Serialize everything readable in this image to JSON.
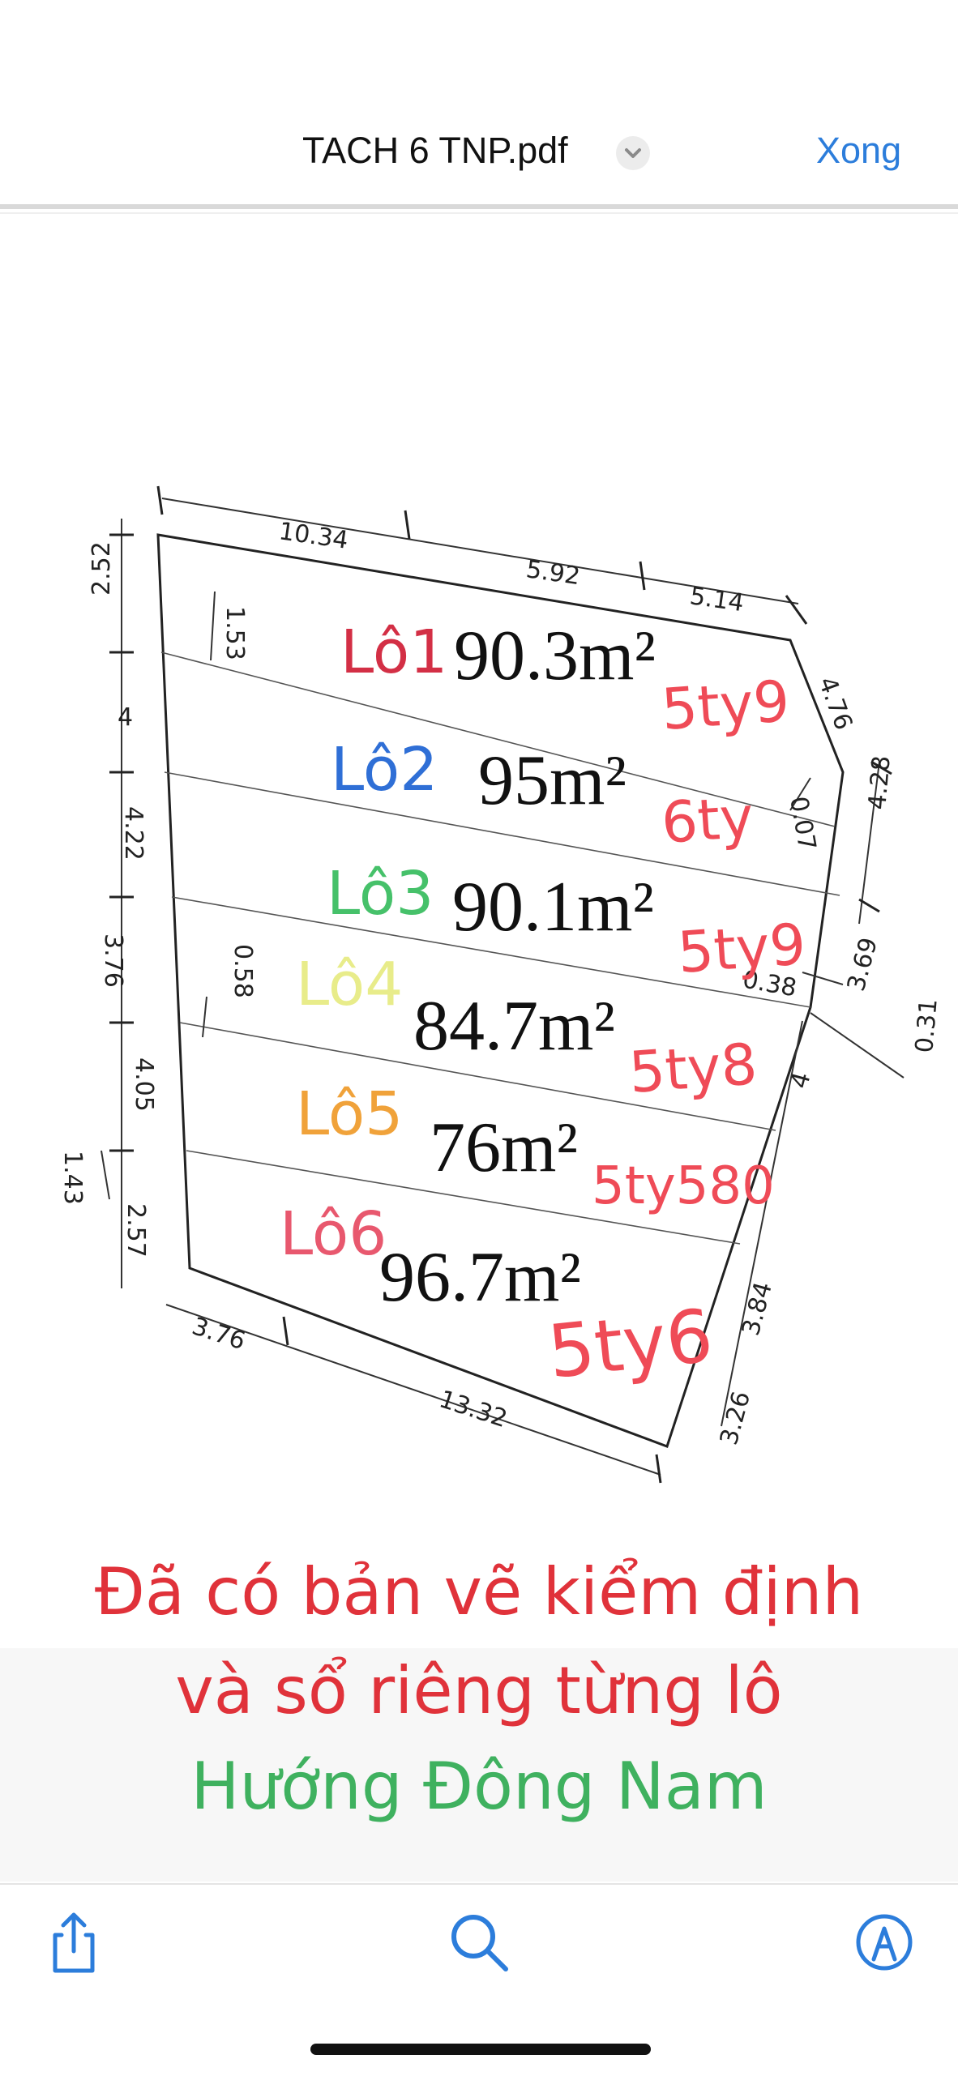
{
  "nav": {
    "title": "TACH 6 TNP.pdf",
    "done_label": "Xong",
    "title_icon": "chevron-down-icon",
    "accent_color": "#2c7ddb"
  },
  "plan": {
    "lots": [
      {
        "label": "Lô1",
        "area": "90.3m²",
        "price": "5ty9",
        "label_color": "#d32f45"
      },
      {
        "label": "Lô2",
        "area": "95m²",
        "price": "6ty",
        "label_color": "#2f6fd6"
      },
      {
        "label": "Lô3",
        "area": "90.1m²",
        "price": "5ty9",
        "label_color": "#46c16a"
      },
      {
        "label": "Lô4",
        "area": "84.7m²",
        "price": "5ty8",
        "label_color": "#e8ec8a"
      },
      {
        "label": "Lô5",
        "area": "76m²",
        "price": "5ty580",
        "label_color": "#f0a23a"
      },
      {
        "label": "Lô6",
        "area": "96.7m²",
        "price": "5ty6",
        "label_color": "#e8586e"
      }
    ],
    "price_color": "#ef4b57",
    "dimensions": {
      "top_a": "10.34",
      "top_b": "5.92",
      "top_c": "5.14",
      "right_a": "4.76",
      "right_b": "4.28",
      "right_c": "3.69",
      "right_d": "0.31",
      "right_e": "4",
      "right_f": "3.84",
      "right_g": "3.26",
      "inner_a": "0.07",
      "inner_b": "0.38",
      "bottom_a": "3.76",
      "bottom_b": "13.32",
      "left_a": "2.52",
      "left_b": "1.53",
      "left_c": "4",
      "left_d": "4.22",
      "left_e": "3.76",
      "left_f": "0.58",
      "left_g": "4.05",
      "left_h": "1.43",
      "left_i": "2.57"
    }
  },
  "caption": {
    "line1": "Đã có bản vẽ kiểm định",
    "line2": "và sổ riêng từng lô",
    "line3": "Hướng Đông Nam"
  },
  "toolbar": {
    "share_icon": "share-icon",
    "search_icon": "search-icon",
    "markup_icon": "markup-pen-icon"
  }
}
